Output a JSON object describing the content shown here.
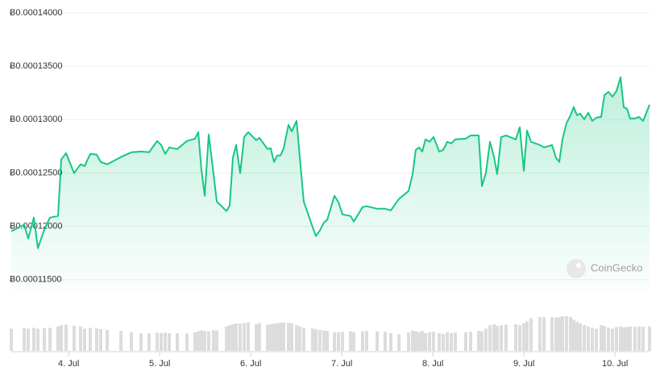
{
  "chart_data": {
    "type": "line",
    "watermark": "CoinGecko",
    "color": "#16c784",
    "volume_color": "#dcdcdc",
    "grid": true,
    "xlim": [
      3.37,
      10.379
    ],
    "xticks": [
      {
        "value": 4,
        "label": "4. Jul"
      },
      {
        "value": 5,
        "label": "5. Jul"
      },
      {
        "value": 6,
        "label": "6. Jul"
      },
      {
        "value": 7,
        "label": "7. Jul"
      },
      {
        "value": 8,
        "label": "8. Jul"
      },
      {
        "value": 9,
        "label": "9. Jul"
      },
      {
        "value": 10,
        "label": "10. Jul"
      }
    ],
    "ylim": [
      0.000114,
      0.00014
    ],
    "yticks": [
      {
        "value": 0.000115,
        "label": "Ƀ0.00011500"
      },
      {
        "value": 0.00012,
        "label": "Ƀ0.00012000"
      },
      {
        "value": 0.000125,
        "label": "Ƀ0.00012500"
      },
      {
        "value": 0.00013,
        "label": "Ƀ0.00013000"
      },
      {
        "value": 0.000135,
        "label": "Ƀ0.00013500"
      },
      {
        "value": 0.00014,
        "label": "Ƀ0.00014000"
      }
    ],
    "y2lim": [
      0,
      100
    ],
    "x": [
      3.37,
      3.512,
      3.556,
      3.618,
      3.662,
      3.733,
      3.795,
      3.883,
      3.919,
      3.972,
      4.06,
      4.131,
      4.175,
      4.237,
      4.308,
      4.352,
      4.423,
      4.574,
      4.689,
      4.795,
      4.883,
      4.972,
      5.016,
      5.06,
      5.105,
      5.193,
      5.299,
      5.388,
      5.423,
      5.458,
      5.494,
      5.538,
      5.591,
      5.627,
      5.733,
      5.768,
      5.804,
      5.839,
      5.883,
      5.928,
      5.972,
      6.06,
      6.095,
      6.184,
      6.219,
      6.255,
      6.29,
      6.326,
      6.361,
      6.414,
      6.45,
      6.503,
      6.538,
      6.582,
      6.68,
      6.715,
      6.759,
      6.804,
      6.839,
      6.919,
      6.963,
      7.007,
      7.096,
      7.131,
      7.228,
      7.272,
      7.388,
      7.476,
      7.538,
      7.627,
      7.733,
      7.777,
      7.812,
      7.848,
      7.883,
      7.919,
      7.963,
      8.007,
      8.069,
      8.113,
      8.158,
      8.202,
      8.246,
      8.361,
      8.414,
      8.503,
      8.538,
      8.582,
      8.627,
      8.671,
      8.706,
      8.75,
      8.803,
      8.91,
      8.954,
      8.998,
      9.034,
      9.078,
      9.175,
      9.22,
      9.308,
      9.352,
      9.388,
      9.423,
      9.467,
      9.512,
      9.547,
      9.582,
      9.618,
      9.662,
      9.706,
      9.75,
      9.795,
      9.848,
      9.883,
      9.928,
      9.972,
      10.016,
      10.06,
      10.096,
      10.131,
      10.166,
      10.219,
      10.264,
      10.308,
      10.379
    ],
    "values": [
      0.00011954,
      0.00012016,
      0.00011886,
      0.00012082,
      0.00011795,
      0.00011969,
      0.00012082,
      0.00012097,
      0.00012626,
      0.00012686,
      0.00012498,
      0.00012581,
      0.00012565,
      0.00012679,
      0.00012671,
      0.00012603,
      0.00012581,
      0.00012649,
      0.00012694,
      0.00012701,
      0.00012694,
      0.000128,
      0.00012762,
      0.00012679,
      0.00012739,
      0.00012724,
      0.000128,
      0.00012822,
      0.00012883,
      0.00012535,
      0.00012286,
      0.0001286,
      0.0001249,
      0.00012233,
      0.00012143,
      0.00012196,
      0.00012641,
      0.00012762,
      0.00012498,
      0.00012837,
      0.00012883,
      0.00012807,
      0.0001283,
      0.00012724,
      0.00012732,
      0.00012603,
      0.00012664,
      0.00012664,
      0.00012732,
      0.00012951,
      0.0001289,
      0.00012988,
      0.00012649,
      0.00012233,
      0.00011992,
      0.00011909,
      0.00011961,
      0.00012037,
      0.0001206,
      0.00012286,
      0.00012226,
      0.00012112,
      0.00012097,
      0.00012045,
      0.0001218,
      0.00012188,
      0.00012165,
      0.00012165,
      0.0001215,
      0.00012256,
      0.00012331,
      0.0001249,
      0.00012716,
      0.00012739,
      0.00012701,
      0.00012815,
      0.00012792,
      0.00012837,
      0.00012701,
      0.00012716,
      0.00012792,
      0.00012777,
      0.00012815,
      0.00012822,
      0.00012852,
      0.00012852,
      0.00012377,
      0.00012498,
      0.00012792,
      0.00012649,
      0.0001249,
      0.00012837,
      0.00012852,
      0.00012815,
      0.00012928,
      0.0001252,
      0.00012898,
      0.00012792,
      0.00012762,
      0.00012739,
      0.00012762,
      0.00012641,
      0.00012603,
      0.00012815,
      0.00012966,
      0.00013041,
      0.00013117,
      0.00013041,
      0.00013056,
      0.00013003,
      0.00013064,
      0.00012988,
      0.00013018,
      0.00013026,
      0.0001323,
      0.0001326,
      0.00013215,
      0.00013268,
      0.00013396,
      0.00013117,
      0.00013102,
      0.00013011,
      0.00013011,
      0.00013026,
      0.00012988,
      0.00013139
    ],
    "volumes": [
      50,
      51,
      50,
      52,
      50,
      51,
      52,
      55,
      58,
      59,
      57,
      55,
      50,
      52,
      51,
      49,
      47,
      45,
      42,
      40,
      40,
      41,
      40,
      41,
      40,
      40,
      39,
      42,
      44,
      46,
      45,
      44,
      47,
      46,
      55,
      58,
      60,
      62,
      62,
      63,
      64,
      60,
      63,
      59,
      60,
      61,
      62,
      64,
      64,
      63,
      62,
      58,
      55,
      52,
      50,
      49,
      47,
      46,
      45,
      42,
      42,
      43,
      44,
      42,
      44,
      45,
      44,
      43,
      40,
      38,
      42,
      46,
      44,
      42,
      45,
      40,
      42,
      43,
      40,
      38,
      42,
      40,
      41,
      42,
      43,
      45,
      44,
      50,
      58,
      60,
      56,
      58,
      59,
      60,
      58,
      62,
      66,
      74,
      76,
      76,
      76,
      75,
      76,
      78,
      78,
      76,
      70,
      65,
      62,
      58,
      55,
      52,
      50,
      58,
      56,
      52,
      50,
      54,
      55,
      53,
      54,
      55,
      54,
      55,
      54,
      55
    ]
  }
}
